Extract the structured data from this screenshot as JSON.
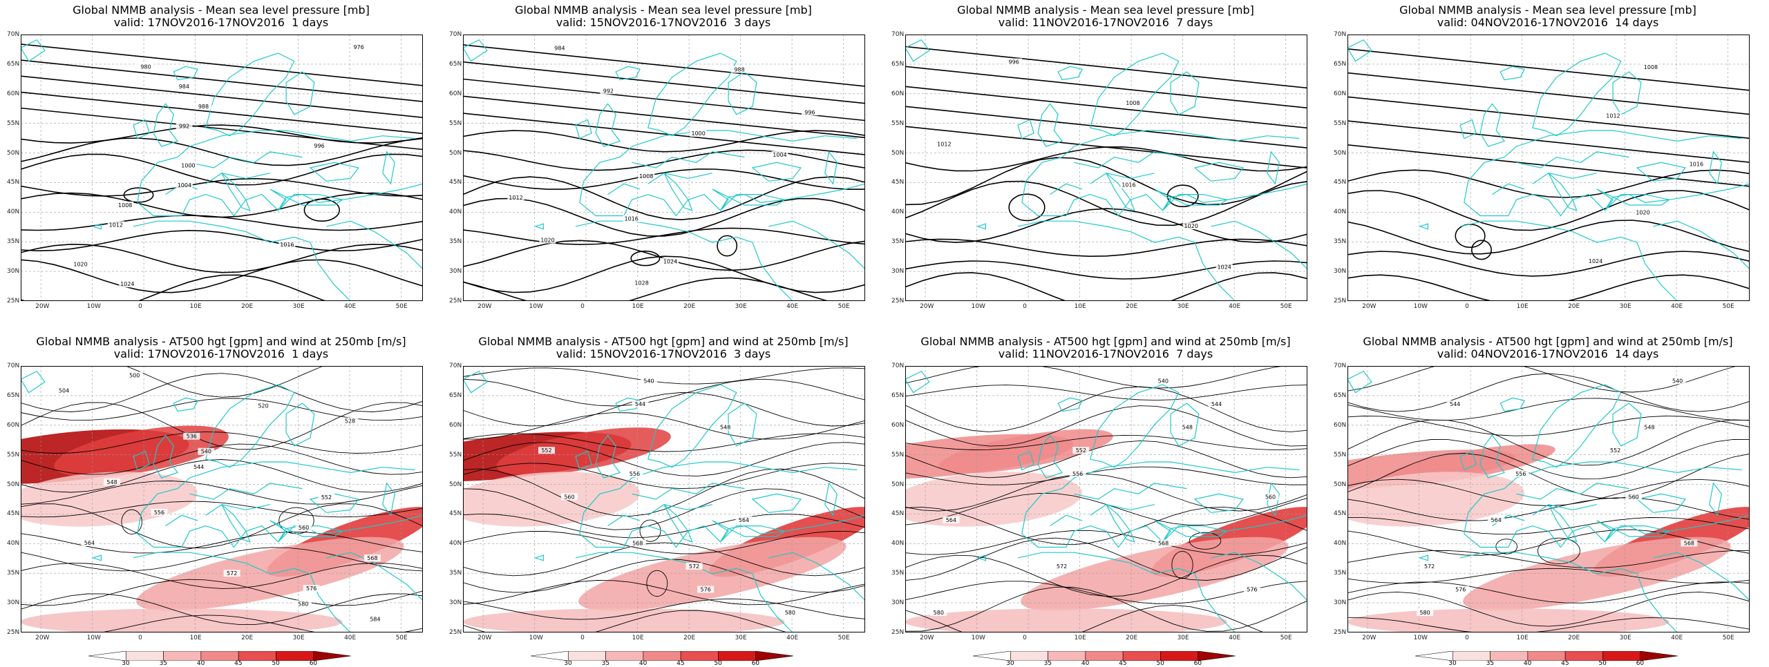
{
  "panels": [
    {
      "row": "mslp",
      "title": "Global NMMB analysis - Mean sea level pressure [mb]",
      "valid": "valid: 17NOV2016-17NOV2016  1 days",
      "contour_labels": [
        "976",
        "980",
        "984",
        "988",
        "992",
        "996",
        "1000",
        "1004",
        "1008",
        "1012",
        "1016",
        "1020",
        "1024"
      ]
    },
    {
      "row": "mslp",
      "title": "Global NMMB analysis - Mean sea level pressure [mb]",
      "valid": "valid: 15NOV2016-17NOV2016  3 days",
      "contour_labels": [
        "984",
        "988",
        "992",
        "996",
        "1000",
        "1004",
        "1008",
        "1012",
        "1016",
        "1020",
        "1024",
        "1028"
      ]
    },
    {
      "row": "mslp",
      "title": "Global NMMB analysis - Mean sea level pressure [mb]",
      "valid": "valid: 11NOV2016-17NOV2016  7 days",
      "contour_labels": [
        "996",
        "1008",
        "1012",
        "1016",
        "1020",
        "1024"
      ]
    },
    {
      "row": "mslp",
      "title": "Global NMMB analysis - Mean sea level pressure [mb]",
      "valid": "valid: 04NOV2016-17NOV2016  14 days",
      "contour_labels": [
        "1008",
        "1012",
        "1016",
        "1020",
        "1024"
      ]
    },
    {
      "row": "z500",
      "title": "Global NMMB analysis - AT500 hgt [gpm] and wind at 250mb [m/s]",
      "valid": "valid: 17NOV2016-17NOV2016  1 days",
      "contour_labels": [
        "500",
        "504",
        "520",
        "528",
        "536",
        "540",
        "544",
        "548",
        "552",
        "556",
        "560",
        "564",
        "568",
        "572",
        "576",
        "580",
        "584"
      ]
    },
    {
      "row": "z500",
      "title": "Global NMMB analysis - AT500 hgt [gpm] and wind at 250mb [m/s]",
      "valid": "valid: 15NOV2016-17NOV2016  3 days",
      "contour_labels": [
        "540",
        "544",
        "548",
        "552",
        "556",
        "560",
        "564",
        "568",
        "572",
        "576",
        "580"
      ]
    },
    {
      "row": "z500",
      "title": "Global NMMB analysis - AT500 hgt [gpm] and wind at 250mb [m/s]",
      "valid": "valid: 11NOV2016-17NOV2016  7 days",
      "contour_labels": [
        "540",
        "544",
        "548",
        "552",
        "556",
        "560",
        "564",
        "568",
        "572",
        "576",
        "580"
      ]
    },
    {
      "row": "z500",
      "title": "Global NMMB analysis - AT500 hgt [gpm] and wind at 250mb [m/s]",
      "valid": "valid: 04NOV2016-17NOV2016  14 days",
      "contour_labels": [
        "540",
        "544",
        "548",
        "552",
        "556",
        "560",
        "564",
        "568",
        "572",
        "576",
        "580"
      ]
    }
  ],
  "lat_labels": [
    "70N",
    "65N",
    "60N",
    "55N",
    "50N",
    "45N",
    "40N",
    "35N",
    "30N",
    "25N"
  ],
  "lon_labels": [
    "20W",
    "10W",
    "0",
    "10E",
    "20E",
    "30E",
    "40E",
    "50E"
  ],
  "colorbar": {
    "labels": [
      "30",
      "35",
      "40",
      "45",
      "50",
      "60"
    ],
    "colors": [
      "#ffffff",
      "#fbe0e0",
      "#f6b8b8",
      "#f08a8a",
      "#e85050",
      "#d81818",
      "#a00000"
    ]
  },
  "colors": {
    "coast": "#1fc8c8",
    "contour": "#000000",
    "jet": "#e03030",
    "grid": "#9a9a9a"
  }
}
